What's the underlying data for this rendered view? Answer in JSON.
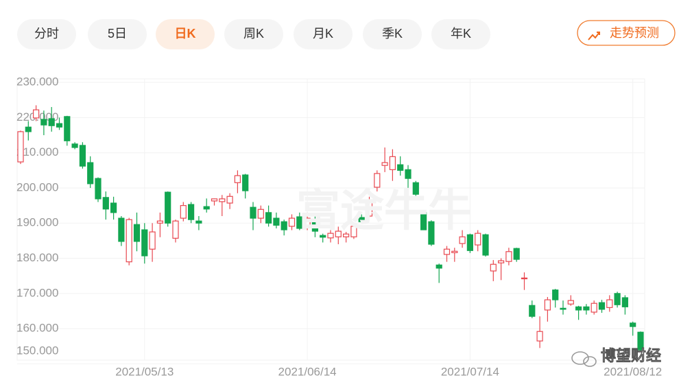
{
  "tabs": [
    "分时",
    "5日",
    "日K",
    "周K",
    "月K",
    "季K",
    "年K"
  ],
  "active_tab": 2,
  "forecast_button": "走势预测",
  "watermark": "富途牛牛",
  "badge": "博望财经",
  "chart_data": {
    "type": "candlestick",
    "up_color": "#e8474f",
    "down_color": "#12a650",
    "grid": true,
    "ylim": [
      150,
      231
    ],
    "yticks": [
      {
        "value": 150,
        "label": "150.000"
      },
      {
        "value": 160,
        "label": "160.000"
      },
      {
        "value": 170,
        "label": "170.000"
      },
      {
        "value": 180,
        "label": "180.000"
      },
      {
        "value": 190,
        "label": "190.000"
      },
      {
        "value": 200,
        "label": "200.000"
      },
      {
        "value": 210,
        "label": "210.000"
      },
      {
        "value": 220,
        "label": "220.000"
      },
      {
        "value": 230,
        "label": "230.000"
      }
    ],
    "categories": [
      null,
      null,
      null,
      null,
      null,
      null,
      null,
      null,
      null,
      null,
      null,
      null,
      null,
      null,
      null,
      null,
      "2021/05/13",
      null,
      null,
      null,
      null,
      null,
      null,
      null,
      null,
      null,
      null,
      null,
      null,
      null,
      null,
      null,
      null,
      null,
      null,
      null,
      null,
      "2021/06/14",
      null,
      null,
      null,
      null,
      null,
      null,
      null,
      null,
      null,
      null,
      null,
      null,
      null,
      null,
      null,
      null,
      null,
      null,
      null,
      null,
      "2021/07/14",
      null,
      null,
      null,
      null,
      null,
      null,
      null,
      null,
      null,
      null,
      null,
      null,
      null,
      null,
      null,
      null,
      null,
      null,
      null,
      null,
      "2021/08/12",
      null
    ],
    "open": [
      207.4,
      217.3,
      219.9,
      219.5,
      219.7,
      218.3,
      220.3,
      212.5,
      212.1,
      207.2,
      202.7,
      197.3,
      195.7,
      191.4,
      179.0,
      189.6,
      188.1,
      182.6,
      190.0,
      198.8,
      185.7,
      191.4,
      195.3,
      190.6,
      194.7,
      196.3,
      196.1,
      195.7,
      201.5,
      203.7,
      194.5,
      191.4,
      193.0,
      191.4,
      190.4,
      189.1,
      191.8,
      189.1,
      191.0,
      186.5,
      185.8,
      186.1,
      186.1,
      186.1,
      191.6,
      192.0,
      200.2,
      206.4,
      205.2,
      206.6,
      205.2,
      201.5,
      193.0,
      190.4,
      178.1,
      181.1,
      181.6,
      184.2,
      186.7,
      183.8,
      186.7,
      176.4,
      178.7,
      179.1,
      182.8,
      174.2,
      166.6,
      156.5,
      165.3,
      171.0,
      165.8,
      167.0,
      166.2,
      166.2,
      164.7,
      167.4,
      166.0,
      170.0,
      168.8,
      161.6,
      159.0
    ],
    "high": [
      216.3,
      219.0,
      223.5,
      222.0,
      223.0,
      220.0,
      220.5,
      213.0,
      213.0,
      209.0,
      203.0,
      199.0,
      197.5,
      192.0,
      191.5,
      193.0,
      190.0,
      190.0,
      193.0,
      199.0,
      191.0,
      196.0,
      196.0,
      192.0,
      197.0,
      197.0,
      198.0,
      198.5,
      205.0,
      204.0,
      196.0,
      195.0,
      195.0,
      193.0,
      191.0,
      192.5,
      193.0,
      193.0,
      192.0,
      187.0,
      188.0,
      189.0,
      187.5,
      190.0,
      192.5,
      197.5,
      205.0,
      211.5,
      211.0,
      209.0,
      206.5,
      202.0,
      193.5,
      190.8,
      178.5,
      183.5,
      183.0,
      188.0,
      187.0,
      188.0,
      187.0,
      179.5,
      180.0,
      183.0,
      183.0,
      176.0,
      168.0,
      163.5,
      169.0,
      171.3,
      168.0,
      169.5,
      166.5,
      167.0,
      168.0,
      168.2,
      169.5,
      170.5,
      169.5,
      162.0,
      159.2
    ],
    "low": [
      206.8,
      213.5,
      219.0,
      215.0,
      216.0,
      216.5,
      212.0,
      211.0,
      205.5,
      200.0,
      196.0,
      191.0,
      191.0,
      183.5,
      178.0,
      182.0,
      178.5,
      179.0,
      186.0,
      189.0,
      184.5,
      190.5,
      190.0,
      188.0,
      193.0,
      195.0,
      192.0,
      194.0,
      198.5,
      197.0,
      188.0,
      190.0,
      189.0,
      188.5,
      186.5,
      188.0,
      188.0,
      188.0,
      186.0,
      184.5,
      184.5,
      184.0,
      184.5,
      185.5,
      190.0,
      191.5,
      199.0,
      204.5,
      202.0,
      203.5,
      200.0,
      197.0,
      188.0,
      183.5,
      173.0,
      179.0,
      179.0,
      183.0,
      181.5,
      182.0,
      180.5,
      173.5,
      173.8,
      178.0,
      179.0,
      171.0,
      163.0,
      154.5,
      162.0,
      166.0,
      164.0,
      166.5,
      162.5,
      164.0,
      164.0,
      164.5,
      164.8,
      166.0,
      164.0,
      158.0,
      153.5
    ],
    "close": [
      216.0,
      216.0,
      222.2,
      217.9,
      217.7,
      217.3,
      213.4,
      211.5,
      206.2,
      201.2,
      196.9,
      194.0,
      193.0,
      184.8,
      191.0,
      184.8,
      180.7,
      187.5,
      190.6,
      190.0,
      190.6,
      195.0,
      191.0,
      190.0,
      194.0,
      196.9,
      196.9,
      197.6,
      203.5,
      199.2,
      191.4,
      193.9,
      190.0,
      189.4,
      188.1,
      191.4,
      188.5,
      191.4,
      187.7,
      186.0,
      187.1,
      187.7,
      186.9,
      189.1,
      190.4,
      196.3,
      204.1,
      207.2,
      208.9,
      205.0,
      202.7,
      198.2,
      188.1,
      184.0,
      177.2,
      182.6,
      182.0,
      186.1,
      182.2,
      187.1,
      180.9,
      178.3,
      179.3,
      181.9,
      179.7,
      174.4,
      163.5,
      159.2,
      168.2,
      168.2,
      165.5,
      168.0,
      165.3,
      165.3,
      167.2,
      165.5,
      168.2,
      166.8,
      166.2,
      160.6,
      154.0
    ]
  }
}
